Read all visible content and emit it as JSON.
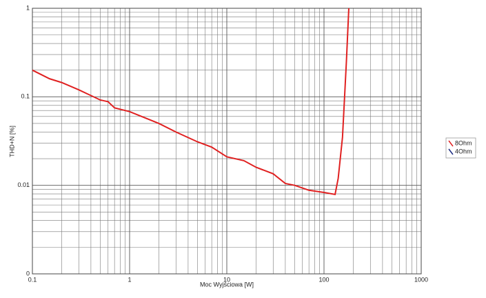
{
  "chart_data": {
    "type": "line",
    "xlabel": "Moc Wyjściowa [W]",
    "ylabel": "THD+N [%]",
    "xscale": "log",
    "yscale": "log",
    "grid": true,
    "legend": "right",
    "xlim": [
      0.1,
      1000
    ],
    "xticks": [
      0.1,
      1,
      10,
      100,
      1000
    ],
    "ylim": [
      0.001,
      1
    ],
    "yticks": [
      {
        "value": 0.001,
        "label": "0"
      },
      0.01,
      0.1,
      1
    ],
    "x": [
      0.1,
      0.15,
      0.2,
      0.3,
      0.5,
      0.6,
      0.7,
      1,
      2,
      3,
      5,
      7,
      10,
      15,
      20,
      30,
      40,
      50,
      70,
      100,
      130,
      140,
      155,
      170,
      180
    ],
    "series": [
      {
        "name": "8Ohm",
        "color": "#e02020",
        "values": [
          0.2,
          0.16,
          0.145,
          0.12,
          0.092,
          0.088,
          0.075,
          0.068,
          0.05,
          0.04,
          0.031,
          0.027,
          0.021,
          0.019,
          0.016,
          0.0135,
          0.0105,
          0.01,
          0.0088,
          0.0083,
          0.0079,
          0.012,
          0.035,
          0.25,
          1
        ]
      },
      {
        "name": "4Ohm",
        "color": "#1a2a80",
        "values": [
          null,
          null,
          null,
          null,
          null,
          null,
          null,
          null,
          null,
          null,
          null,
          null,
          null,
          null,
          null,
          null,
          null,
          null,
          null,
          null,
          null,
          null,
          null,
          null,
          null
        ]
      }
    ]
  }
}
